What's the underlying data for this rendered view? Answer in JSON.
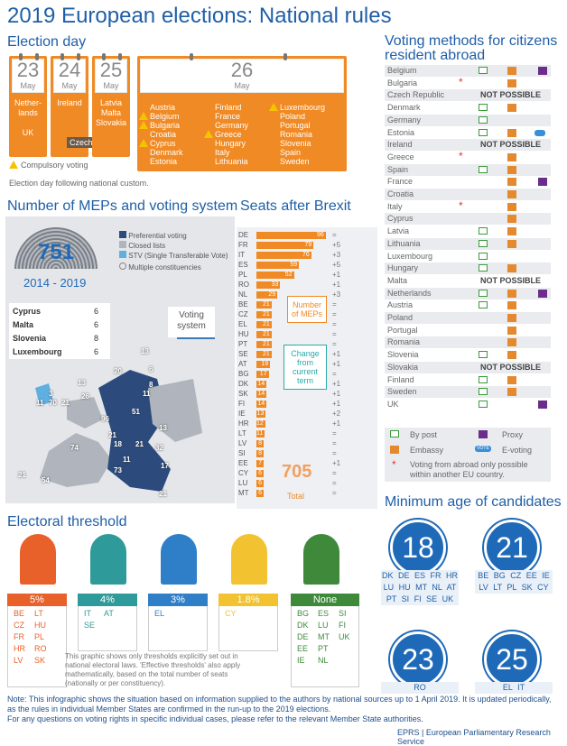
{
  "title": "2019 European elections: National rules",
  "election_day": {
    "heading": "Election day",
    "days": [
      {
        "day": "23",
        "month": "May",
        "countries": [
          "Nether-",
          "lands",
          "",
          "UK"
        ]
      },
      {
        "day": "24",
        "month": "May",
        "countries": [
          "Ireland"
        ],
        "extra": "Czech Rep."
      },
      {
        "day": "25",
        "month": "May",
        "countries": [
          "Latvia",
          "Malta",
          "Slovakia"
        ]
      },
      {
        "day": "26",
        "month": "May",
        "col1": [
          {
            "name": "Austria",
            "c": false
          },
          {
            "name": "Belgium",
            "c": true
          },
          {
            "name": "Bulgaria",
            "c": true
          },
          {
            "name": "Croatia",
            "c": false
          },
          {
            "name": "Cyprus",
            "c": true
          },
          {
            "name": "Denmark",
            "c": false
          },
          {
            "name": "Estonia",
            "c": false
          }
        ],
        "col2": [
          {
            "name": "Finland",
            "c": false
          },
          {
            "name": "France",
            "c": false
          },
          {
            "name": "Germany",
            "c": false
          },
          {
            "name": "Greece",
            "c": true
          },
          {
            "name": "Hungary",
            "c": false
          },
          {
            "name": "Italy",
            "c": false
          },
          {
            "name": "Lithuania",
            "c": false
          }
        ],
        "col3": [
          {
            "name": "Luxembourg",
            "c": true
          },
          {
            "name": "Poland",
            "c": false
          },
          {
            "name": "Portugal",
            "c": false
          },
          {
            "name": "Romania",
            "c": false
          },
          {
            "name": "Slovenia",
            "c": false
          },
          {
            "name": "Spain",
            "c": false
          },
          {
            "name": "Sweden",
            "c": false
          }
        ]
      }
    ],
    "compulsory_label": "Compulsory voting",
    "custom_note": "Election day following national custom."
  },
  "meps": {
    "heading": "Number of MEPs and voting system",
    "total": "751",
    "period": "2014 - 2019",
    "legend": [
      "Preferential voting",
      "Closed lists",
      "STV (Single Transferable Vote)",
      "Multiple constituencies"
    ],
    "small_countries": [
      {
        "name": "Cyprus",
        "v": "6"
      },
      {
        "name": "Malta",
        "v": "6"
      },
      {
        "name": "Slovenia",
        "v": "8"
      },
      {
        "name": "Luxembourg",
        "v": "6"
      }
    ],
    "voting_system_label": "Voting system",
    "map_numbers": [
      {
        "v": "13",
        "x": 156,
        "y": 385
      },
      {
        "v": "20",
        "x": 126,
        "y": 407
      },
      {
        "v": "6",
        "x": 165,
        "y": 405
      },
      {
        "v": "8",
        "x": 165,
        "y": 422
      },
      {
        "v": "11",
        "x": 158,
        "y": 432
      },
      {
        "v": "13",
        "x": 86,
        "y": 420
      },
      {
        "v": "26",
        "x": 90,
        "y": 435
      },
      {
        "v": "3",
        "x": 54,
        "y": 432
      },
      {
        "v": "11",
        "x": 40,
        "y": 442
      },
      {
        "v": "70",
        "x": 54,
        "y": 442
      },
      {
        "v": "21",
        "x": 68,
        "y": 442
      },
      {
        "v": "51",
        "x": 146,
        "y": 452
      },
      {
        "v": "96",
        "x": 112,
        "y": 460
      },
      {
        "v": "13",
        "x": 176,
        "y": 470
      },
      {
        "v": "21",
        "x": 120,
        "y": 478
      },
      {
        "v": "18",
        "x": 126,
        "y": 488
      },
      {
        "v": "21",
        "x": 150,
        "y": 488
      },
      {
        "v": "32",
        "x": 172,
        "y": 492
      },
      {
        "v": "74",
        "x": 78,
        "y": 492
      },
      {
        "v": "11",
        "x": 136,
        "y": 505
      },
      {
        "v": "73",
        "x": 126,
        "y": 517
      },
      {
        "v": "17",
        "x": 178,
        "y": 512
      },
      {
        "v": "21",
        "x": 20,
        "y": 522
      },
      {
        "v": "54",
        "x": 46,
        "y": 528
      },
      {
        "v": "21",
        "x": 176,
        "y": 543
      }
    ]
  },
  "seats": {
    "heading": "Seats after Brexit",
    "rows": [
      {
        "c": "DE",
        "v": 96,
        "ch": "="
      },
      {
        "c": "FR",
        "v": 79,
        "ch": "+5"
      },
      {
        "c": "IT",
        "v": 76,
        "ch": "+3"
      },
      {
        "c": "ES",
        "v": 59,
        "ch": "+5"
      },
      {
        "c": "PL",
        "v": 52,
        "ch": "+1"
      },
      {
        "c": "RO",
        "v": 33,
        "ch": "+1"
      },
      {
        "c": "NL",
        "v": 29,
        "ch": "+3"
      },
      {
        "c": "BE",
        "v": 21,
        "ch": "="
      },
      {
        "c": "CZ",
        "v": 21,
        "ch": "="
      },
      {
        "c": "EL",
        "v": 21,
        "ch": "="
      },
      {
        "c": "HU",
        "v": 21,
        "ch": "="
      },
      {
        "c": "PT",
        "v": 21,
        "ch": "="
      },
      {
        "c": "SE",
        "v": 21,
        "ch": "+1"
      },
      {
        "c": "AT",
        "v": 19,
        "ch": "+1"
      },
      {
        "c": "BG",
        "v": 17,
        "ch": "="
      },
      {
        "c": "DK",
        "v": 14,
        "ch": "+1"
      },
      {
        "c": "SK",
        "v": 14,
        "ch": "+1"
      },
      {
        "c": "FI",
        "v": 14,
        "ch": "+1"
      },
      {
        "c": "IE",
        "v": 13,
        "ch": "+2"
      },
      {
        "c": "HR",
        "v": 12,
        "ch": "+1"
      },
      {
        "c": "LT",
        "v": 11,
        "ch": "="
      },
      {
        "c": "LV",
        "v": 8,
        "ch": "="
      },
      {
        "c": "SI",
        "v": 8,
        "ch": "="
      },
      {
        "c": "EE",
        "v": 7,
        "ch": "+1"
      },
      {
        "c": "CY",
        "v": 6,
        "ch": "="
      },
      {
        "c": "LU",
        "v": 6,
        "ch": "="
      },
      {
        "c": "MT",
        "v": 6,
        "ch": "="
      }
    ],
    "meps_label": "Number of MEPs",
    "change_label": "Change from current term",
    "total": "705",
    "total_label": "Total"
  },
  "voting_methods": {
    "heading": "Voting methods for citizens resident abroad",
    "not_possible": "NOT POSSIBLE",
    "rows": [
      {
        "n": "Belgium",
        "post": true,
        "emb": true,
        "prox": true
      },
      {
        "n": "Bulgaria",
        "ast": true,
        "emb": true
      },
      {
        "n": "Czech Republic",
        "np": true
      },
      {
        "n": "Denmark",
        "post": true,
        "emb": true
      },
      {
        "n": "Germany",
        "post": true
      },
      {
        "n": "Estonia",
        "post": true,
        "emb": true,
        "evote": true
      },
      {
        "n": "Ireland",
        "np": true
      },
      {
        "n": "Greece",
        "ast": true,
        "emb": true
      },
      {
        "n": "Spain",
        "post": true,
        "emb": true
      },
      {
        "n": "France",
        "emb": true,
        "prox": true
      },
      {
        "n": "Croatia",
        "emb": true
      },
      {
        "n": "Italy",
        "ast": true,
        "emb": true
      },
      {
        "n": "Cyprus",
        "emb": true
      },
      {
        "n": "Latvia",
        "post": true,
        "emb": true
      },
      {
        "n": "Lithuania",
        "post": true,
        "emb": true
      },
      {
        "n": "Luxembourg",
        "post": true
      },
      {
        "n": "Hungary",
        "post": true,
        "emb": true
      },
      {
        "n": "Malta",
        "np": true
      },
      {
        "n": "Netherlands",
        "post": true,
        "emb": true,
        "prox": true
      },
      {
        "n": "Austria",
        "post": true,
        "emb": true
      },
      {
        "n": "Poland",
        "emb": true
      },
      {
        "n": "Portugal",
        "emb": true
      },
      {
        "n": "Romania",
        "emb": true
      },
      {
        "n": "Slovenia",
        "post": true,
        "emb": true
      },
      {
        "n": "Slovakia",
        "np": true
      },
      {
        "n": "Finland",
        "post": true,
        "emb": true
      },
      {
        "n": "Sweden",
        "post": true,
        "emb": true
      },
      {
        "n": "UK",
        "post": true,
        "prox": true
      }
    ],
    "legend": {
      "post": "By post",
      "proxy": "Proxy",
      "embassy": "Embassy",
      "evote": "E-voting",
      "ast": "Voting from abroad only possible within another EU country.",
      "evote_badge": "VOTE"
    }
  },
  "threshold": {
    "heading": "Electoral threshold",
    "items": [
      {
        "label": "5%",
        "color": "#e8602a",
        "cols": [
          [
            "BE",
            "CZ",
            "FR",
            "HR",
            "LV"
          ],
          [
            "LT",
            "HU",
            "PL",
            "RO",
            "SK"
          ]
        ]
      },
      {
        "label": "4%",
        "color": "#2e9a9a",
        "cols": [
          [
            "IT",
            "SE"
          ],
          [
            "AT"
          ]
        ]
      },
      {
        "label": "3%",
        "color": "#2e7fc8",
        "cols": [
          [
            "EL"
          ]
        ]
      },
      {
        "label": "1.8%",
        "color": "#f2c230",
        "cols": [
          [
            "CY"
          ]
        ]
      },
      {
        "label": "None",
        "color": "#3e8a3a",
        "cols": [
          [
            "BG",
            "DK",
            "DE",
            "EE",
            "IE"
          ],
          [
            "ES",
            "LU",
            "MT",
            "PT",
            "NL"
          ],
          [
            "SI",
            "FI",
            "UK"
          ]
        ]
      }
    ],
    "note": "This graphic shows only thresholds explicitly set out in national electoral laws. 'Effective thresholds' also apply mathematically, based on the total number of seats (nationally or per constituency)."
  },
  "min_age": {
    "heading": "Minimum age of candidates",
    "groups": [
      {
        "age": "18",
        "codes": "DK DE ES FR HR LU HU MT NL AT PT SI FI SE UK"
      },
      {
        "age": "21",
        "codes": "BE BG CZ EE IE LV LT PL SK CY"
      },
      {
        "age": "23",
        "codes": "RO"
      },
      {
        "age": "25",
        "codes": "EL IT"
      }
    ]
  },
  "footer": {
    "note1": "Note: This infographic shows the situation based on information supplied to the authors by national sources up to 1 April 2019. It is updated periodically, as the rules in individual Member States are confirmed in the run-up to the 2019 elections.",
    "note2": "For any questions on voting rights in specific individual cases, please refer to the relevant Member State authorities.",
    "source": "EPRS | European Parliamentary Research Service"
  }
}
